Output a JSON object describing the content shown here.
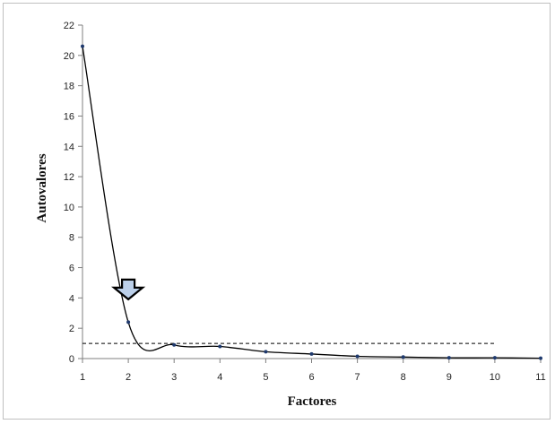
{
  "chart_data": {
    "type": "line",
    "title": "",
    "xlabel": "Factores",
    "ylabel": "Autovalores",
    "x": [
      1,
      2,
      3,
      4,
      5,
      6,
      7,
      8,
      9,
      10,
      11
    ],
    "series": [
      {
        "values": [
          20.6,
          2.4,
          0.9,
          0.8,
          0.45,
          0.3,
          0.15,
          0.1,
          0.05,
          0.05,
          0.02
        ]
      }
    ],
    "reference_line": {
      "y": 1,
      "x_range": [
        1,
        10
      ],
      "style": "dashed"
    },
    "annotation": {
      "type": "arrow-down",
      "x": 2,
      "y": 4.5
    },
    "xlim": [
      1,
      11
    ],
    "ylim": [
      0,
      22
    ],
    "x_ticks": [
      "1",
      "2",
      "3",
      "4",
      "5",
      "6",
      "7",
      "8",
      "9",
      "10",
      "11"
    ],
    "y_ticks": [
      "0",
      "2",
      "4",
      "6",
      "8",
      "10",
      "12",
      "14",
      "16",
      "18",
      "20",
      "22"
    ],
    "grid": false,
    "legend": "none",
    "colors": {
      "line": "#000000",
      "marker": "#1f3a6e",
      "arrow_fill": "#bcd0ea",
      "arrow_stroke": "#000000"
    }
  }
}
